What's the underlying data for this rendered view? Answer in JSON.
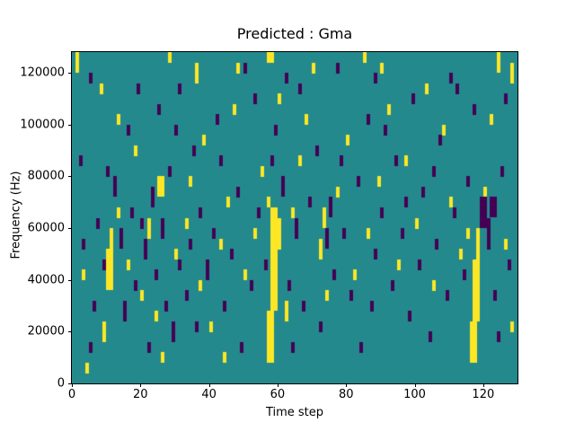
{
  "figure": {
    "title": "Predicted : Gma",
    "xlabel": "Time step",
    "ylabel": "Frequency (Hz)"
  },
  "chart_data": {
    "type": "heatmap",
    "title": "Predicted : Gma",
    "xlabel": "Time step",
    "ylabel": "Frequency (Hz)",
    "x_range": [
      0,
      130
    ],
    "y_range": [
      0,
      128000
    ],
    "x_ticks": [
      0,
      20,
      40,
      60,
      80,
      100,
      120
    ],
    "y_ticks": [
      0,
      20000,
      40000,
      60000,
      80000,
      100000,
      120000
    ],
    "grid": false,
    "legend": "none",
    "colormap": "viridis-3-level",
    "colors": {
      "background_mid": "#23898d",
      "high": "#fde725",
      "low": "#440154"
    },
    "cols": 130,
    "rows": 32,
    "cell_units": {
      "x_step": 1,
      "y_hz_per_row": 4000
    },
    "cells": {
      "note": "rectangles [col,row,width,height] in cell units, row 0 = bottom (0 Hz)",
      "high_yellow": [
        [
          1,
          30,
          1,
          2
        ],
        [
          4,
          1,
          1,
          1
        ],
        [
          3,
          10,
          1,
          1
        ],
        [
          10,
          9,
          2,
          4
        ],
        [
          11,
          13,
          1,
          2
        ],
        [
          9,
          4,
          1,
          2
        ],
        [
          13,
          16,
          1,
          1
        ],
        [
          16,
          11,
          1,
          1
        ],
        [
          20,
          8,
          1,
          1
        ],
        [
          22,
          14,
          1,
          2
        ],
        [
          25,
          18,
          2,
          2
        ],
        [
          24,
          6,
          1,
          1
        ],
        [
          28,
          31,
          1,
          1
        ],
        [
          30,
          12,
          1,
          1
        ],
        [
          26,
          2,
          1,
          1
        ],
        [
          33,
          15,
          1,
          1
        ],
        [
          36,
          29,
          1,
          2
        ],
        [
          38,
          23,
          1,
          1
        ],
        [
          37,
          9,
          1,
          1
        ],
        [
          40,
          5,
          1,
          1
        ],
        [
          43,
          13,
          1,
          1
        ],
        [
          45,
          17,
          1,
          1
        ],
        [
          47,
          26,
          1,
          1
        ],
        [
          44,
          2,
          1,
          1
        ],
        [
          50,
          10,
          1,
          1
        ],
        [
          53,
          14,
          1,
          1
        ],
        [
          55,
          20,
          1,
          1
        ],
        [
          57,
          2,
          2,
          5
        ],
        [
          58,
          7,
          2,
          10
        ],
        [
          57,
          17,
          1,
          1
        ],
        [
          60,
          13,
          1,
          3
        ],
        [
          57,
          31,
          2,
          1
        ],
        [
          62,
          6,
          1,
          2
        ],
        [
          64,
          16,
          1,
          1
        ],
        [
          66,
          21,
          1,
          1
        ],
        [
          70,
          30,
          1,
          1
        ],
        [
          72,
          12,
          1,
          2
        ],
        [
          74,
          8,
          1,
          1
        ],
        [
          73,
          15,
          1,
          2
        ],
        [
          77,
          18,
          1,
          1
        ],
        [
          80,
          23,
          1,
          1
        ],
        [
          82,
          10,
          1,
          1
        ],
        [
          85,
          31,
          1,
          1
        ],
        [
          86,
          14,
          1,
          1
        ],
        [
          89,
          19,
          1,
          1
        ],
        [
          92,
          26,
          1,
          1
        ],
        [
          95,
          11,
          1,
          1
        ],
        [
          97,
          21,
          1,
          1
        ],
        [
          100,
          15,
          1,
          1
        ],
        [
          103,
          28,
          1,
          1
        ],
        [
          105,
          9,
          1,
          1
        ],
        [
          108,
          24,
          1,
          1
        ],
        [
          110,
          17,
          1,
          1
        ],
        [
          113,
          12,
          1,
          1
        ],
        [
          116,
          2,
          2,
          4
        ],
        [
          117,
          6,
          2,
          6
        ],
        [
          118,
          12,
          1,
          3
        ],
        [
          115,
          14,
          1,
          1
        ],
        [
          120,
          18,
          1,
          1
        ],
        [
          122,
          25,
          1,
          1
        ],
        [
          124,
          30,
          1,
          2
        ],
        [
          126,
          13,
          1,
          1
        ],
        [
          128,
          29,
          1,
          2
        ],
        [
          128,
          5,
          1,
          1
        ],
        [
          34,
          19,
          1,
          1
        ],
        [
          18,
          22,
          1,
          1
        ],
        [
          8,
          28,
          1,
          1
        ],
        [
          60,
          27,
          1,
          1
        ],
        [
          48,
          30,
          1,
          1
        ],
        [
          90,
          30,
          1,
          1
        ],
        [
          13,
          25,
          1,
          1
        ],
        [
          68,
          25,
          1,
          1
        ]
      ],
      "low_purple": [
        [
          5,
          29,
          1,
          1
        ],
        [
          2,
          21,
          1,
          1
        ],
        [
          7,
          15,
          1,
          1
        ],
        [
          6,
          7,
          1,
          1
        ],
        [
          12,
          18,
          1,
          2
        ],
        [
          14,
          13,
          1,
          2
        ],
        [
          15,
          6,
          1,
          2
        ],
        [
          17,
          16,
          1,
          1
        ],
        [
          18,
          9,
          1,
          1
        ],
        [
          19,
          28,
          1,
          1
        ],
        [
          21,
          12,
          1,
          2
        ],
        [
          22,
          3,
          1,
          1
        ],
        [
          23,
          17,
          1,
          2
        ],
        [
          24,
          10,
          1,
          1
        ],
        [
          26,
          14,
          1,
          2
        ],
        [
          27,
          7,
          1,
          1
        ],
        [
          28,
          20,
          1,
          1
        ],
        [
          29,
          4,
          1,
          2
        ],
        [
          31,
          28,
          1,
          1
        ],
        [
          31,
          11,
          1,
          1
        ],
        [
          33,
          8,
          1,
          1
        ],
        [
          34,
          13,
          1,
          1
        ],
        [
          35,
          22,
          1,
          1
        ],
        [
          37,
          16,
          1,
          1
        ],
        [
          39,
          10,
          1,
          2
        ],
        [
          41,
          14,
          1,
          1
        ],
        [
          42,
          25,
          1,
          1
        ],
        [
          44,
          7,
          1,
          1
        ],
        [
          46,
          12,
          1,
          1
        ],
        [
          48,
          18,
          1,
          1
        ],
        [
          49,
          3,
          1,
          1
        ],
        [
          50,
          30,
          1,
          1
        ],
        [
          52,
          9,
          1,
          1
        ],
        [
          54,
          16,
          1,
          1
        ],
        [
          56,
          11,
          1,
          1
        ],
        [
          59,
          24,
          1,
          1
        ],
        [
          61,
          18,
          1,
          2
        ],
        [
          62,
          29,
          1,
          1
        ],
        [
          63,
          9,
          1,
          1
        ],
        [
          65,
          14,
          1,
          2
        ],
        [
          67,
          7,
          1,
          1
        ],
        [
          69,
          17,
          1,
          1
        ],
        [
          71,
          22,
          1,
          1
        ],
        [
          72,
          5,
          1,
          1
        ],
        [
          74,
          13,
          1,
          2
        ],
        [
          75,
          16,
          1,
          2
        ],
        [
          76,
          10,
          1,
          1
        ],
        [
          77,
          30,
          1,
          1
        ],
        [
          79,
          14,
          1,
          1
        ],
        [
          81,
          8,
          1,
          1
        ],
        [
          83,
          19,
          1,
          1
        ],
        [
          84,
          3,
          1,
          1
        ],
        [
          86,
          25,
          1,
          1
        ],
        [
          88,
          29,
          1,
          1
        ],
        [
          88,
          12,
          1,
          1
        ],
        [
          90,
          16,
          1,
          1
        ],
        [
          93,
          9,
          1,
          1
        ],
        [
          94,
          21,
          1,
          1
        ],
        [
          96,
          14,
          1,
          1
        ],
        [
          98,
          6,
          1,
          1
        ],
        [
          99,
          27,
          1,
          1
        ],
        [
          101,
          11,
          1,
          1
        ],
        [
          102,
          18,
          1,
          1
        ],
        [
          104,
          4,
          1,
          1
        ],
        [
          106,
          13,
          1,
          1
        ],
        [
          107,
          23,
          1,
          1
        ],
        [
          109,
          8,
          1,
          1
        ],
        [
          111,
          16,
          1,
          1
        ],
        [
          112,
          28,
          1,
          1
        ],
        [
          114,
          10,
          1,
          1
        ],
        [
          115,
          19,
          1,
          1
        ],
        [
          119,
          15,
          2,
          3
        ],
        [
          121,
          13,
          1,
          3
        ],
        [
          122,
          16,
          2,
          2
        ],
        [
          123,
          8,
          1,
          1
        ],
        [
          125,
          20,
          1,
          1
        ],
        [
          126,
          27,
          1,
          1
        ],
        [
          127,
          11,
          1,
          1
        ],
        [
          10,
          20,
          1,
          1
        ],
        [
          16,
          24,
          1,
          1
        ],
        [
          25,
          26,
          1,
          1
        ],
        [
          43,
          21,
          1,
          1
        ],
        [
          58,
          21,
          1,
          1
        ],
        [
          91,
          24,
          1,
          1
        ],
        [
          117,
          26,
          1,
          1
        ],
        [
          3,
          13,
          1,
          1
        ],
        [
          9,
          11,
          1,
          1
        ],
        [
          20,
          15,
          1,
          1
        ],
        [
          36,
          5,
          1,
          1
        ],
        [
          53,
          27,
          1,
          1
        ],
        [
          64,
          3,
          1,
          1
        ],
        [
          78,
          21,
          1,
          1
        ],
        [
          97,
          17,
          1,
          1
        ],
        [
          110,
          29,
          1,
          1
        ],
        [
          5,
          3,
          1,
          1
        ],
        [
          30,
          24,
          1,
          1
        ],
        [
          66,
          28,
          1,
          1
        ],
        [
          87,
          7,
          1,
          1
        ],
        [
          105,
          20,
          1,
          1
        ],
        [
          124,
          4,
          1,
          1
        ]
      ]
    }
  }
}
